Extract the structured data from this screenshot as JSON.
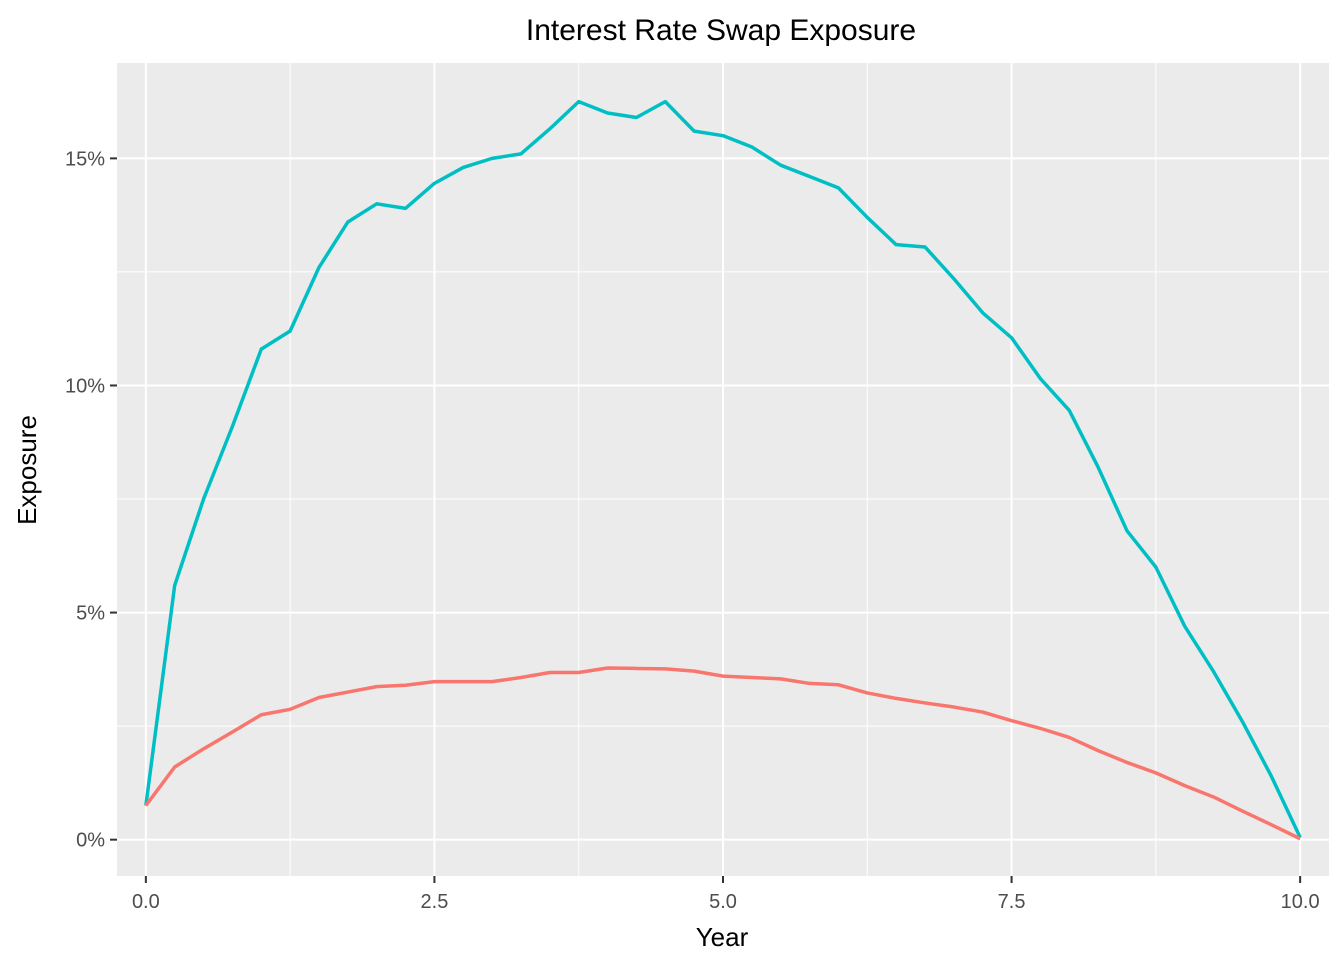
{
  "chart_data": {
    "type": "line",
    "title": "Interest Rate Swap Exposure",
    "xlabel": "Year",
    "ylabel": "Exposure",
    "xlim": [
      -0.25,
      10.25
    ],
    "ylim": [
      -0.008,
      0.171
    ],
    "x_ticks": [
      0,
      2.5,
      5,
      7.5,
      10
    ],
    "x_tick_labels": [
      "0.0",
      "2.5",
      "5.0",
      "7.5",
      "10.0"
    ],
    "y_ticks": [
      0,
      0.05,
      0.1,
      0.15
    ],
    "y_tick_labels": [
      "0%",
      "5%",
      "10%",
      "15%"
    ],
    "grid": true,
    "legend": "none",
    "colors": {
      "panel_background": "#ebebeb",
      "grid_line": "#ffffff",
      "series_teal": "#00bfc4",
      "series_red": "#f8766d"
    },
    "x": [
      0,
      0.25,
      0.5,
      0.75,
      1,
      1.25,
      1.5,
      1.75,
      2,
      2.25,
      2.5,
      2.75,
      3,
      3.25,
      3.5,
      3.75,
      4,
      4.25,
      4.5,
      4.75,
      5,
      5.25,
      5.5,
      5.75,
      6,
      6.25,
      6.5,
      6.75,
      7,
      7.25,
      7.5,
      7.75,
      8,
      8.25,
      8.5,
      8.75,
      9,
      9.25,
      9.5,
      9.75,
      10
    ],
    "series": [
      {
        "color": "#00bfc4",
        "values": [
          0.0075,
          0.056,
          0.075,
          0.091,
          0.108,
          0.112,
          0.126,
          0.136,
          0.14,
          0.139,
          0.1445,
          0.148,
          0.15,
          0.151,
          0.1565,
          0.1625,
          0.16,
          0.159,
          0.1625,
          0.156,
          0.155,
          0.1525,
          0.1485,
          0.146,
          0.1435,
          0.137,
          0.131,
          0.1305,
          0.1235,
          0.116,
          0.1105,
          0.1015,
          0.0945,
          0.082,
          0.068,
          0.06,
          0.047,
          0.037,
          0.026,
          0.014,
          0.0005
        ]
      },
      {
        "color": "#f8766d",
        "values": [
          0.0075,
          0.016,
          0.02,
          0.0237,
          0.0275,
          0.0287,
          0.0313,
          0.0325,
          0.0337,
          0.034,
          0.0348,
          0.0348,
          0.0348,
          0.0357,
          0.0368,
          0.0368,
          0.0378,
          0.0377,
          0.0376,
          0.0371,
          0.036,
          0.0357,
          0.0354,
          0.0344,
          0.0341,
          0.0323,
          0.0311,
          0.0301,
          0.0292,
          0.0281,
          0.0262,
          0.0245,
          0.0225,
          0.0196,
          0.017,
          0.0147,
          0.0119,
          0.0094,
          0.0063,
          0.0033,
          0.0002
        ]
      }
    ]
  }
}
